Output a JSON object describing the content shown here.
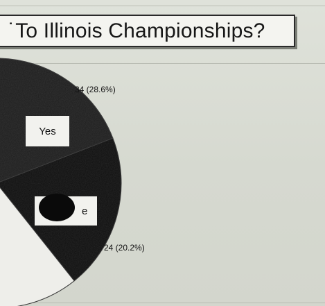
{
  "chart_data": {
    "type": "pie",
    "title": "˙To Illinois Championships?",
    "slices": [
      {
        "label": "Yes",
        "value": 34,
        "data_label": "34 (28.6%)",
        "color": "#1c1c1c"
      },
      {
        "label": "e",
        "value": 24,
        "data_label": "24 (20.2%)",
        "color": "#0d0d0d"
      },
      {
        "label": "",
        "value": 61,
        "data_label": "",
        "color": "#eeeeea"
      }
    ],
    "legend": "none"
  }
}
